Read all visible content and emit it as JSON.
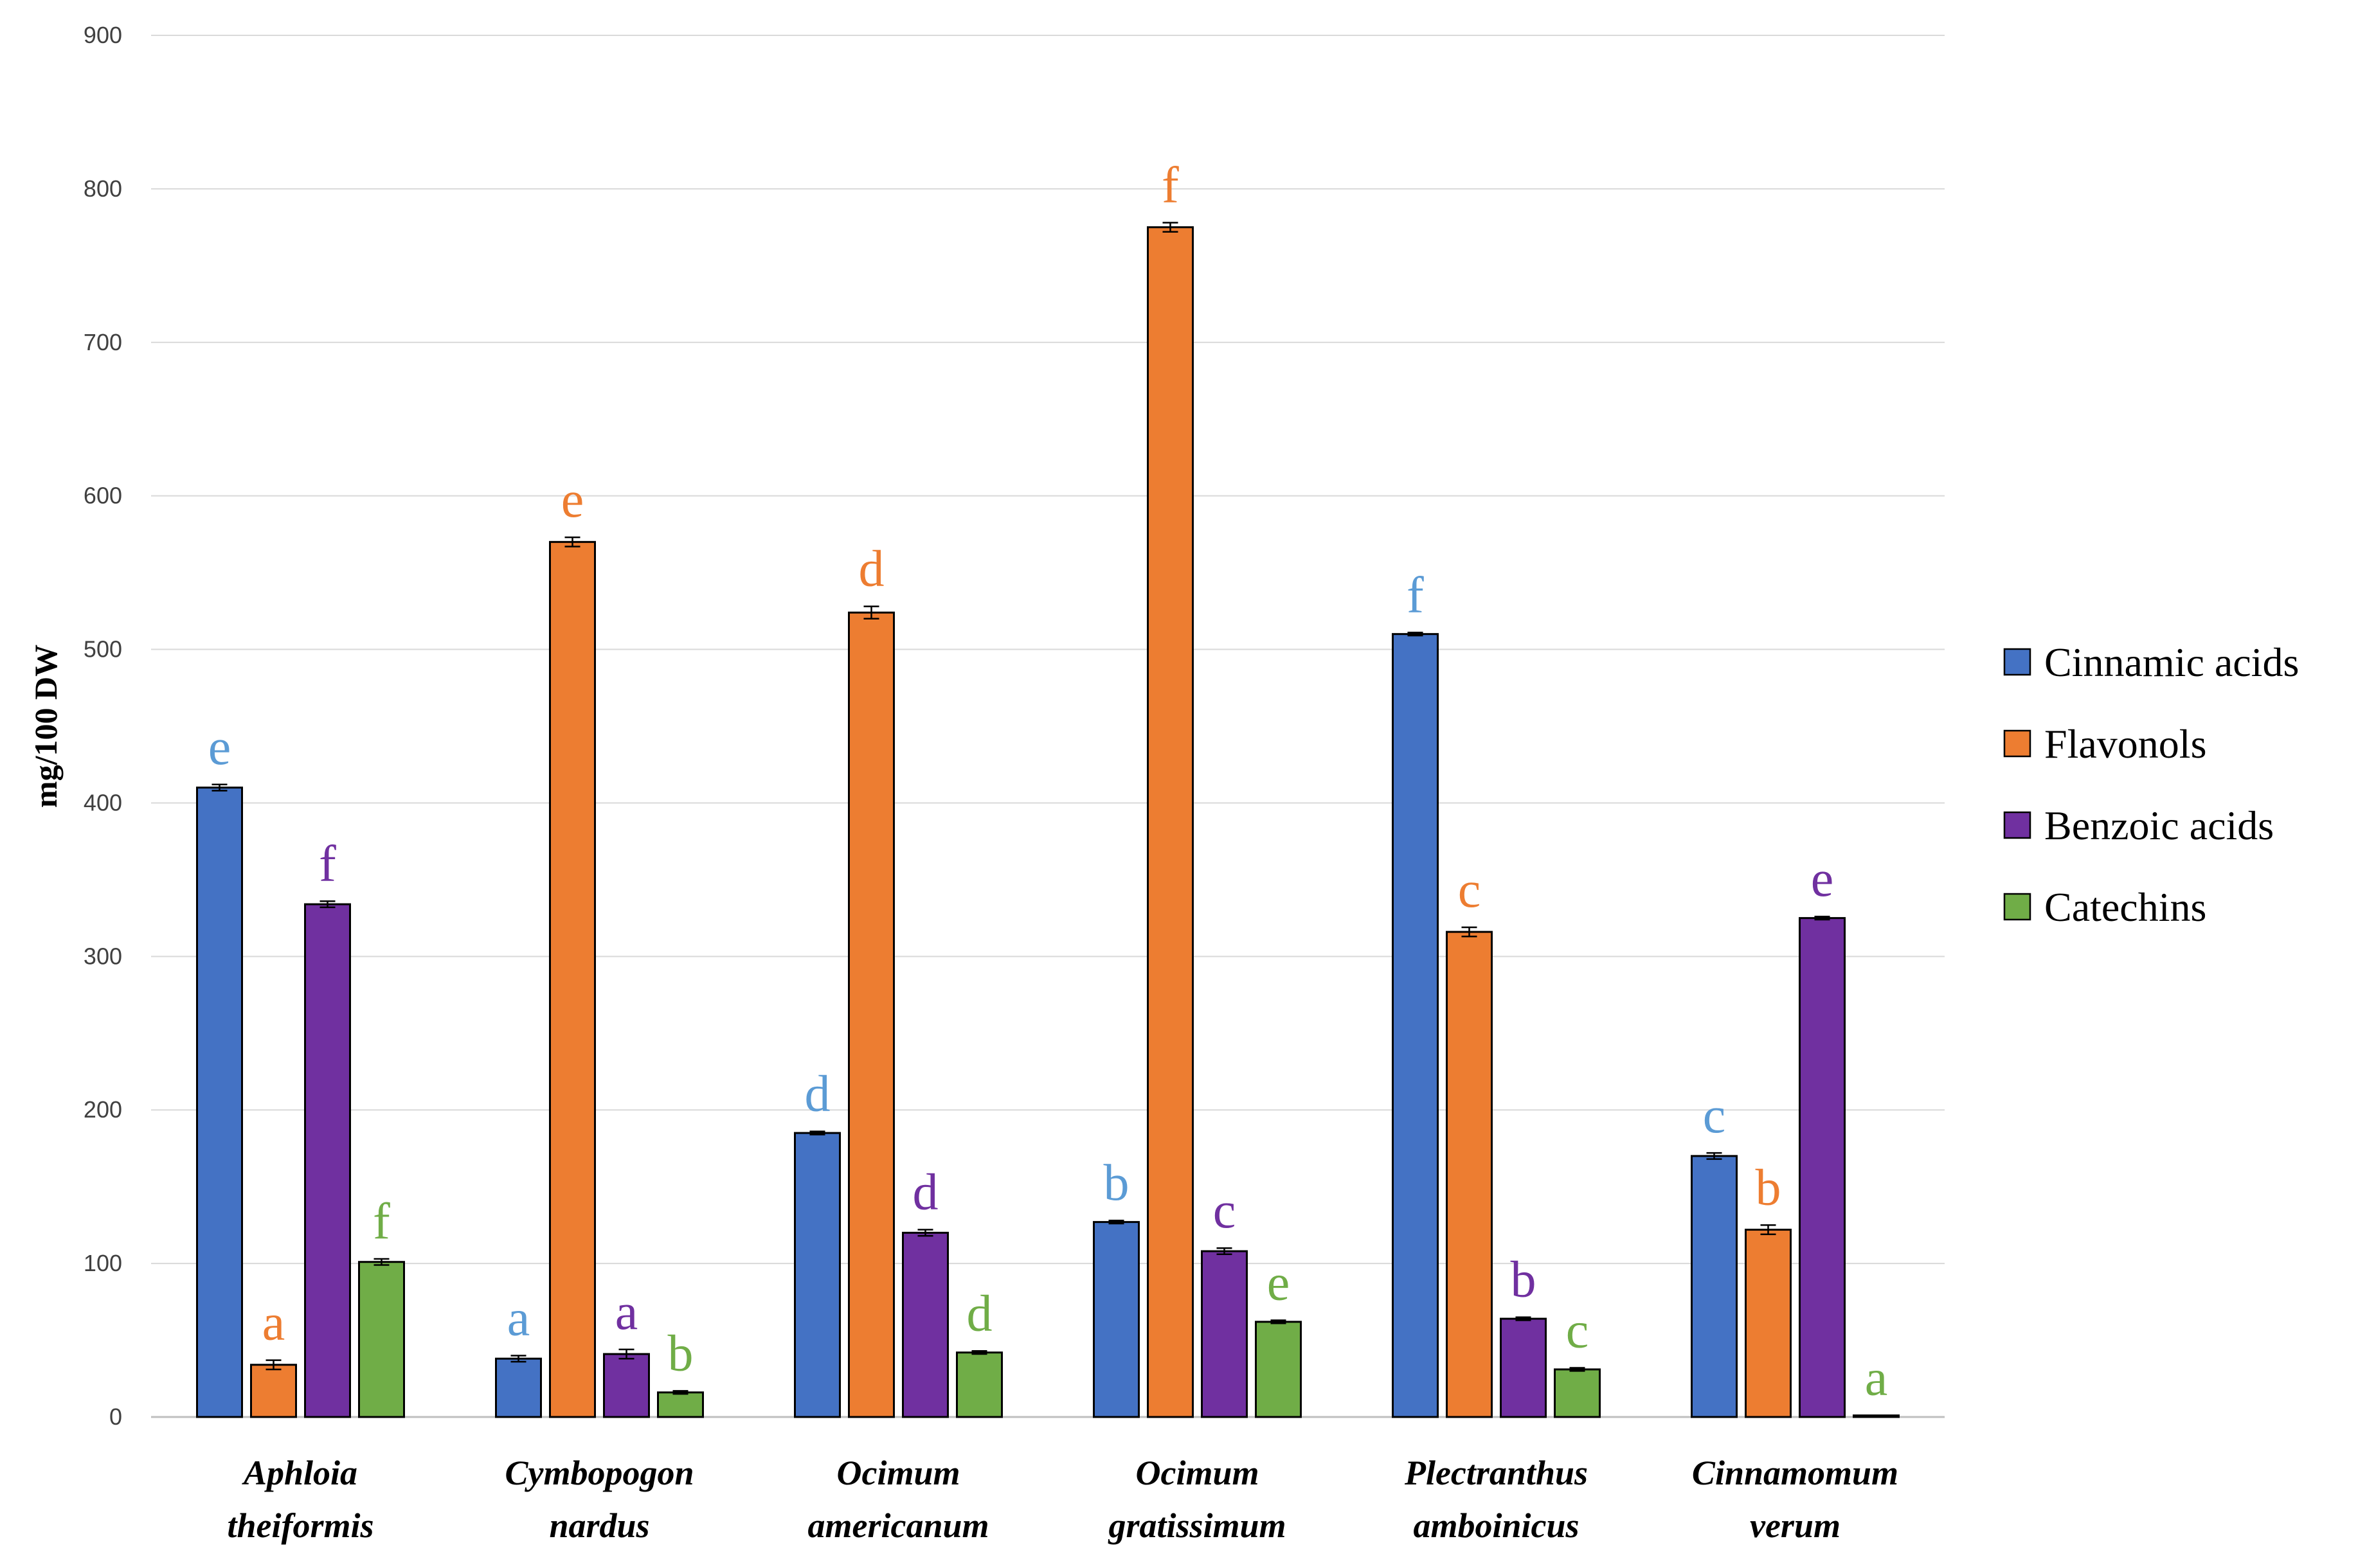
{
  "chart_data": {
    "type": "bar",
    "title": "",
    "xlabel": "",
    "ylabel": "mg/100 DW",
    "ylim": [
      0,
      900
    ],
    "yticks": [
      0,
      100,
      200,
      300,
      400,
      500,
      600,
      700,
      800,
      900
    ],
    "grid": true,
    "legend_position": "right",
    "categories": [
      [
        "Aphloia",
        "theiformis"
      ],
      [
        "Cymbopogon",
        "nardus"
      ],
      [
        "Ocimum",
        "americanum"
      ],
      [
        "Ocimum",
        "gratissimum"
      ],
      [
        "Plectranthus",
        "amboinicus"
      ],
      [
        "Cinnamomum",
        "verum"
      ]
    ],
    "series": [
      {
        "name": "Cinnamic acids",
        "color": "#4472c4",
        "label_color": "#5b9bd5",
        "values": [
          410,
          38,
          185,
          127,
          510,
          170
        ],
        "errors": [
          2,
          2,
          1,
          1,
          1,
          2
        ],
        "letters": [
          "e",
          "a",
          "d",
          "b",
          "f",
          "c"
        ]
      },
      {
        "name": "Flavonols",
        "color": "#ed7d31",
        "label_color": "#ed7d31",
        "values": [
          34,
          570,
          524,
          775,
          316,
          122
        ],
        "errors": [
          3,
          3,
          4,
          3,
          3,
          3
        ],
        "letters": [
          "a",
          "e",
          "d",
          "f",
          "c",
          "b"
        ]
      },
      {
        "name": "Benzoic acids",
        "color": "#7030a0",
        "label_color": "#7030a0",
        "values": [
          334,
          41,
          120,
          108,
          64,
          325
        ],
        "errors": [
          2,
          3,
          2,
          2,
          1,
          1
        ],
        "letters": [
          "f",
          "a",
          "d",
          "c",
          "b",
          "e"
        ]
      },
      {
        "name": "Catechins",
        "color": "#70ad47",
        "label_color": "#70ad47",
        "values": [
          101,
          16,
          42,
          62,
          31,
          1
        ],
        "errors": [
          2,
          1,
          1,
          1,
          1,
          0
        ],
        "letters": [
          "f",
          "b",
          "d",
          "e",
          "c",
          "a"
        ]
      }
    ]
  }
}
